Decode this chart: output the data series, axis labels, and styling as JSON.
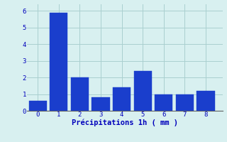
{
  "categories": [
    0,
    1,
    2,
    3,
    4,
    5,
    6,
    7,
    8
  ],
  "values": [
    0.6,
    5.9,
    2.0,
    0.8,
    1.4,
    2.4,
    1.0,
    1.0,
    1.2
  ],
  "bar_color": "#1a3ecc",
  "background_color": "#d8f0f0",
  "grid_color": "#aacfcf",
  "xlabel": "Précipitations 1h ( mm )",
  "xlabel_color": "#0000bb",
  "tick_color": "#0000bb",
  "ylim": [
    0,
    6.4
  ],
  "yticks": [
    0,
    1,
    2,
    3,
    4,
    5,
    6
  ],
  "bar_width": 0.85,
  "xlim": [
    -0.5,
    8.8
  ]
}
